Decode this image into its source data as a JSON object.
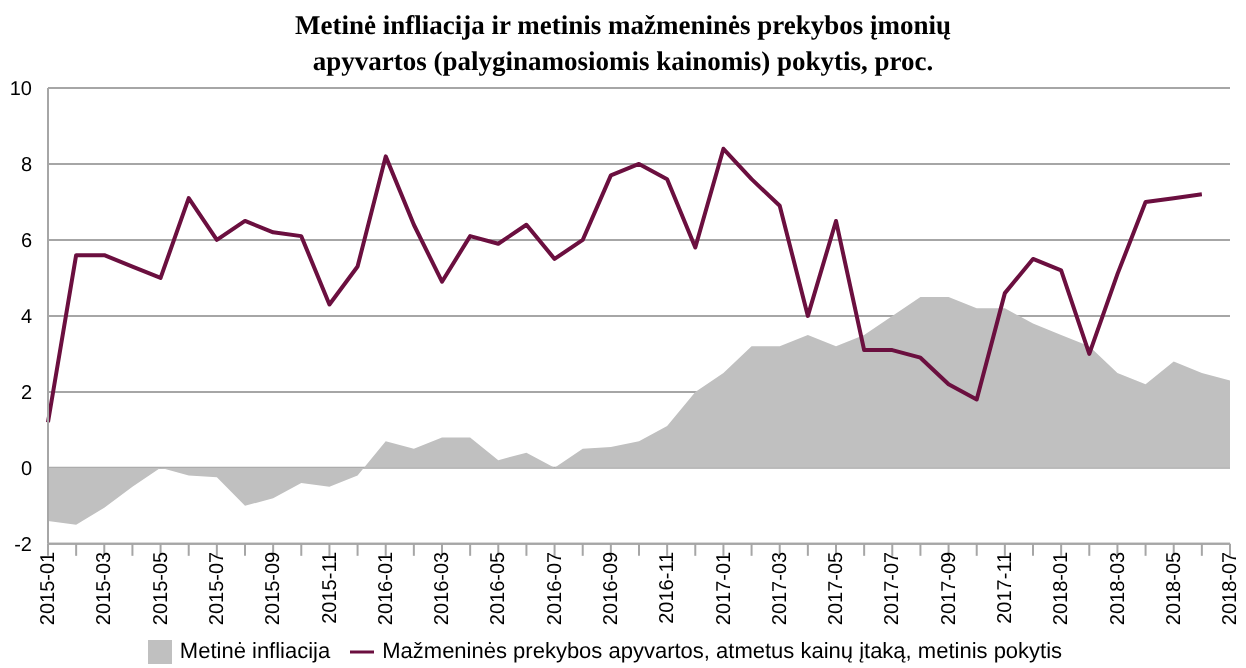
{
  "chart_data": {
    "type": "line",
    "title": "Metinė infliacija ir metinis mažmeninės prekybos įmonių apyvartos (palyginamosiomis  kainomis) pokytis, proc.",
    "categories": [
      "2015-01",
      null,
      "2015-03",
      null,
      "2015-05",
      null,
      "2015-07",
      null,
      "2015-09",
      null,
      "2015-11",
      null,
      "2016-01",
      null,
      "2016-03",
      null,
      "2016-05",
      null,
      "2016-07",
      null,
      "2016-09",
      null,
      "2016-11",
      null,
      "2017-01",
      null,
      "2017-03",
      null,
      "2017-05",
      null,
      "2017-07",
      null,
      "2017-09",
      null,
      "2017-11",
      null,
      "2018-01",
      null,
      "2018-03",
      null,
      "2018-05",
      null,
      "2018-07"
    ],
    "series": [
      {
        "name": "Metinė infliacija",
        "type": "area",
        "color": "#c0c0c0",
        "values": [
          -1.4,
          -1.5,
          -1.05,
          -0.5,
          0.0,
          -0.2,
          -0.25,
          -1.0,
          -0.8,
          -0.4,
          -0.5,
          -0.2,
          0.7,
          0.5,
          0.8,
          0.8,
          0.2,
          0.4,
          0.0,
          0.5,
          0.55,
          0.7,
          1.1,
          2.0,
          2.5,
          3.2,
          3.2,
          3.5,
          3.2,
          3.5,
          4.0,
          4.5,
          4.5,
          4.2,
          4.2,
          3.8,
          3.5,
          3.2,
          2.5,
          2.2,
          2.8,
          2.5,
          2.3
        ]
      },
      {
        "name": "Mažmeninės prekybos apyvartos, atmetus kainų įtaką, metinis pokytis",
        "color": "#6b0f3f",
        "values": [
          1.2,
          5.6,
          5.6,
          5.3,
          5.0,
          7.1,
          6.0,
          6.5,
          6.2,
          6.1,
          4.3,
          5.3,
          8.2,
          6.4,
          4.9,
          6.1,
          5.9,
          6.4,
          5.5,
          6.0,
          7.7,
          8.0,
          7.6,
          5.8,
          8.4,
          7.6,
          6.9,
          4.0,
          6.5,
          3.1,
          3.1,
          2.9,
          2.2,
          1.8,
          4.6,
          5.5,
          5.2,
          3.0,
          5.1,
          7.0,
          7.1,
          7.2,
          null
        ]
      }
    ],
    "ylim": [
      -2,
      10
    ],
    "yticks": [
      -2,
      0,
      2,
      4,
      6,
      8,
      10
    ],
    "grid": "y",
    "legend": "bottom",
    "marker": "none"
  }
}
